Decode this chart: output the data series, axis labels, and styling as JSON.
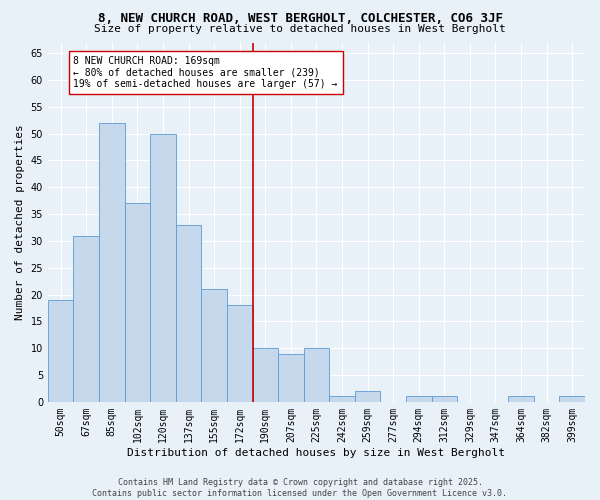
{
  "title": "8, NEW CHURCH ROAD, WEST BERGHOLT, COLCHESTER, CO6 3JF",
  "subtitle": "Size of property relative to detached houses in West Bergholt",
  "xlabel": "Distribution of detached houses by size in West Bergholt",
  "ylabel": "Number of detached properties",
  "categories": [
    "50sqm",
    "67sqm",
    "85sqm",
    "102sqm",
    "120sqm",
    "137sqm",
    "155sqm",
    "172sqm",
    "190sqm",
    "207sqm",
    "225sqm",
    "242sqm",
    "259sqm",
    "277sqm",
    "294sqm",
    "312sqm",
    "329sqm",
    "347sqm",
    "364sqm",
    "382sqm",
    "399sqm"
  ],
  "values": [
    19,
    31,
    52,
    37,
    50,
    33,
    21,
    18,
    10,
    9,
    10,
    1,
    2,
    0,
    1,
    1,
    0,
    0,
    1,
    0,
    1
  ],
  "bar_color": "#c5d8ec",
  "bar_edge_color": "#5b9bd5",
  "vline_index": 7,
  "vline_color": "#cc0000",
  "annotation_text": "8 NEW CHURCH ROAD: 169sqm\n← 80% of detached houses are smaller (239)\n19% of semi-detached houses are larger (57) →",
  "annotation_box_facecolor": "#ffffff",
  "annotation_box_edgecolor": "#cc0000",
  "ylim": [
    0,
    67
  ],
  "yticks": [
    0,
    5,
    10,
    15,
    20,
    25,
    30,
    35,
    40,
    45,
    50,
    55,
    60,
    65
  ],
  "background_color": "#e8f0f8",
  "grid_color": "#ffffff",
  "title_fontsize": 9,
  "subtitle_fontsize": 8,
  "axis_label_fontsize": 8,
  "tick_fontsize": 7,
  "annotation_fontsize": 7,
  "footer_text": "Contains HM Land Registry data © Crown copyright and database right 2025.\nContains public sector information licensed under the Open Government Licence v3.0.",
  "footer_fontsize": 6
}
